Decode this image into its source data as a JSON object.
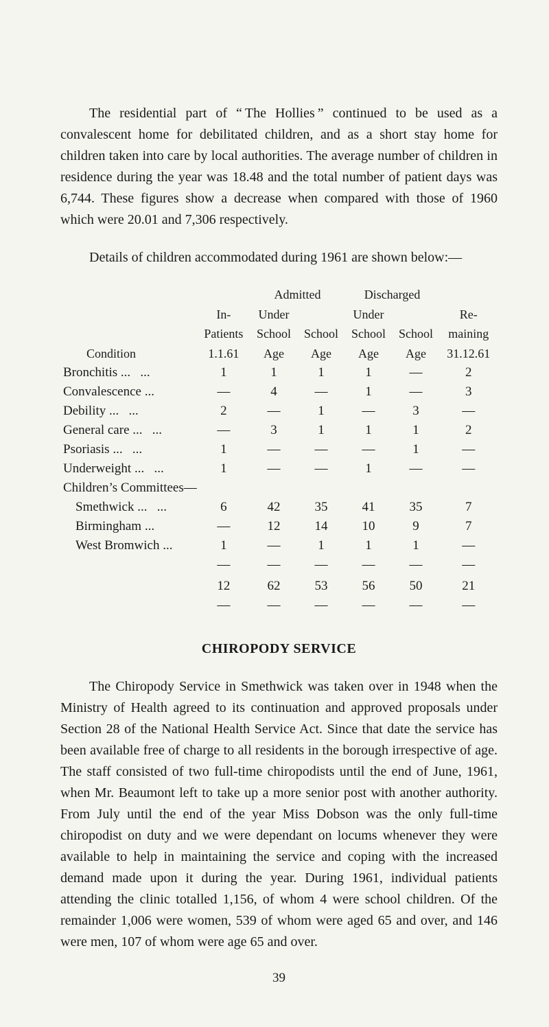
{
  "paragraphs": {
    "p1": "The residential part of “ The Hollies ” continued to be used as a convalescent home for debilitated children, and as a short stay home for children taken into care by local authorities. The average number of children in residence during the year was 18.48 and the total number of patient days was 6,744. These figures show a decrease when compared with those of 1960 which were 20.01 and 7,306 respectively.",
    "p2": "Details of children accommodated during 1961 are shown below:—",
    "p3": "The Chiropody Service in Smethwick was taken over in 1948 when the Ministry of Health agreed to its continuation and approved proposals under Section 28 of the National Health Service Act. Since that date the service has been available free of charge to all residents in the borough irrespective of age. The staff consisted of two full-time chiropodists until the end of June, 1961, when Mr. Beaumont left to take up a more senior post with another authority. From July until the end of the year Miss Dobson was the only full-time chiropodist on duty and we were dependant on locums whenever they were available to help in maintaining the service and coping with the increased demand made upon it during the year. During 1961, individual patients attending the clinic totalled 1,156, of whom 4 were school children. Of the remainder 1,006 were women, 539 of whom were aged 65 and over, and 146 were men, 107 of whom were age 65 and over."
  },
  "section_heading": "CHIROPODY SERVICE",
  "page_number": "39",
  "table": {
    "headers": {
      "condition": "Condition",
      "inpatients_l1": "In-",
      "inpatients_l2": "Patients",
      "inpatients_l3": "1.1.61",
      "admitted": "Admitted",
      "discharged": "Discharged",
      "under_l1": "Under",
      "under_l2": "School",
      "under_l3": "Age",
      "school_l1": "School",
      "school_l2": "Age",
      "remaining_l1": "Re-",
      "remaining_l2": "maining",
      "remaining_l3": "31.12.61",
      "children_committees": "Children’s Committees—"
    },
    "rows": [
      {
        "cond": "Bronchitis",
        "dots": 2,
        "c": [
          "1",
          "1",
          "1",
          "1",
          "—",
          "2"
        ]
      },
      {
        "cond": "Convalescence",
        "dots": 1,
        "c": [
          "—",
          "4",
          "—",
          "1",
          "—",
          "3"
        ]
      },
      {
        "cond": "Debility",
        "dots": 2,
        "c": [
          "2",
          "—",
          "1",
          "—",
          "3",
          "—"
        ]
      },
      {
        "cond": "General care",
        "dots": 2,
        "c": [
          "—",
          "3",
          "1",
          "1",
          "1",
          "2"
        ]
      },
      {
        "cond": "Psoriasis",
        "dots": 2,
        "c": [
          "1",
          "—",
          "—",
          "—",
          "1",
          "—"
        ]
      },
      {
        "cond": "Underweight",
        "dots": 2,
        "c": [
          "1",
          "—",
          "—",
          "1",
          "—",
          "—"
        ]
      }
    ],
    "committee_rows": [
      {
        "cond": "Smethwick",
        "dots": 2,
        "c": [
          "6",
          "42",
          "35",
          "41",
          "35",
          "7"
        ]
      },
      {
        "cond": "Birmingham",
        "dots": 1,
        "c": [
          "—",
          "12",
          "14",
          "10",
          "9",
          "7"
        ]
      },
      {
        "cond": "West Bromwich",
        "dots": 1,
        "c": [
          "1",
          "—",
          "1",
          "1",
          "1",
          "—"
        ]
      }
    ],
    "totals": [
      "12",
      "62",
      "53",
      "56",
      "50",
      "21"
    ]
  }
}
